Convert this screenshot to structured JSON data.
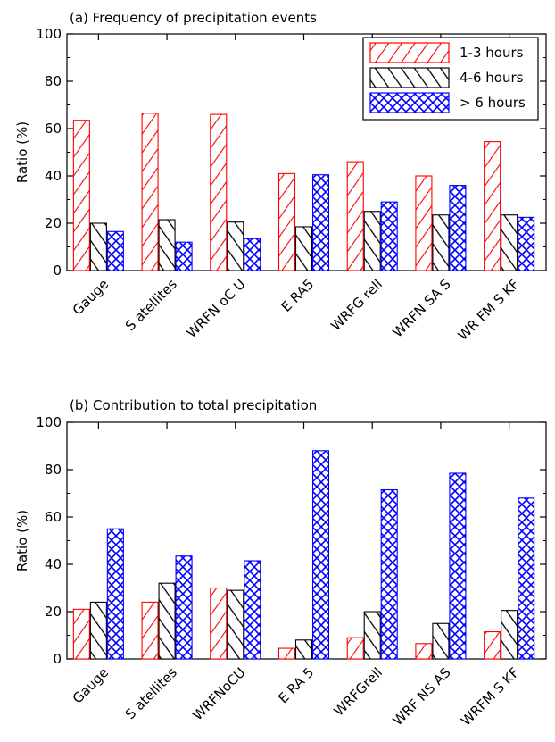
{
  "chart_data": [
    {
      "type": "bar",
      "title": "(a) Frequency of precipitation events",
      "ylabel": "Ratio (%)",
      "xlabel": "",
      "ylim": [
        0,
        100
      ],
      "yticks": [
        "0",
        "20",
        "40",
        "60",
        "80",
        "100"
      ],
      "categories": [
        "Gauge",
        "S atellites",
        "WRFN oC U",
        "E RA5",
        "WRFG rell",
        "WRFN SA S",
        "WR FM S KF"
      ],
      "legend": "top-right",
      "series": [
        {
          "name": "1-3 hours",
          "color": "#ff0000",
          "pattern": "diagonal-forward",
          "values": [
            63.5,
            66.5,
            66,
            41,
            46,
            40,
            54.5
          ]
        },
        {
          "name": "4-6 hours",
          "color": "#000000",
          "pattern": "diagonal-backward",
          "values": [
            20,
            21.5,
            20.5,
            18.5,
            25,
            23.5,
            23.5
          ]
        },
        {
          "name": "> 6 hours",
          "color": "#0000ff",
          "pattern": "crosshatch",
          "values": [
            16.5,
            12,
            13.5,
            40.5,
            29,
            36,
            22.5
          ]
        }
      ]
    },
    {
      "type": "bar",
      "title": "(b) Contribution to total precipitation",
      "ylabel": "Ratio (%)",
      "xlabel": "",
      "ylim": [
        0,
        100
      ],
      "yticks": [
        "0",
        "20",
        "40",
        "60",
        "80",
        "100"
      ],
      "categories": [
        "Gauge",
        "S atellites",
        "WRFNoCU",
        "E RA 5",
        "WRFGrell",
        "WRF NS AS",
        "WRFM S KF"
      ],
      "series": [
        {
          "name": "1-3 hours",
          "color": "#ff0000",
          "pattern": "diagonal-forward",
          "values": [
            21,
            24,
            30,
            4.5,
            9,
            6.5,
            11.5
          ]
        },
        {
          "name": "4-6 hours",
          "color": "#000000",
          "pattern": "diagonal-backward",
          "values": [
            24,
            32,
            29,
            8,
            20,
            15,
            20.5
          ]
        },
        {
          "name": "> 6 hours",
          "color": "#0000ff",
          "pattern": "crosshatch",
          "values": [
            55,
            43.5,
            41.5,
            88,
            71.5,
            78.5,
            68
          ]
        }
      ]
    }
  ]
}
